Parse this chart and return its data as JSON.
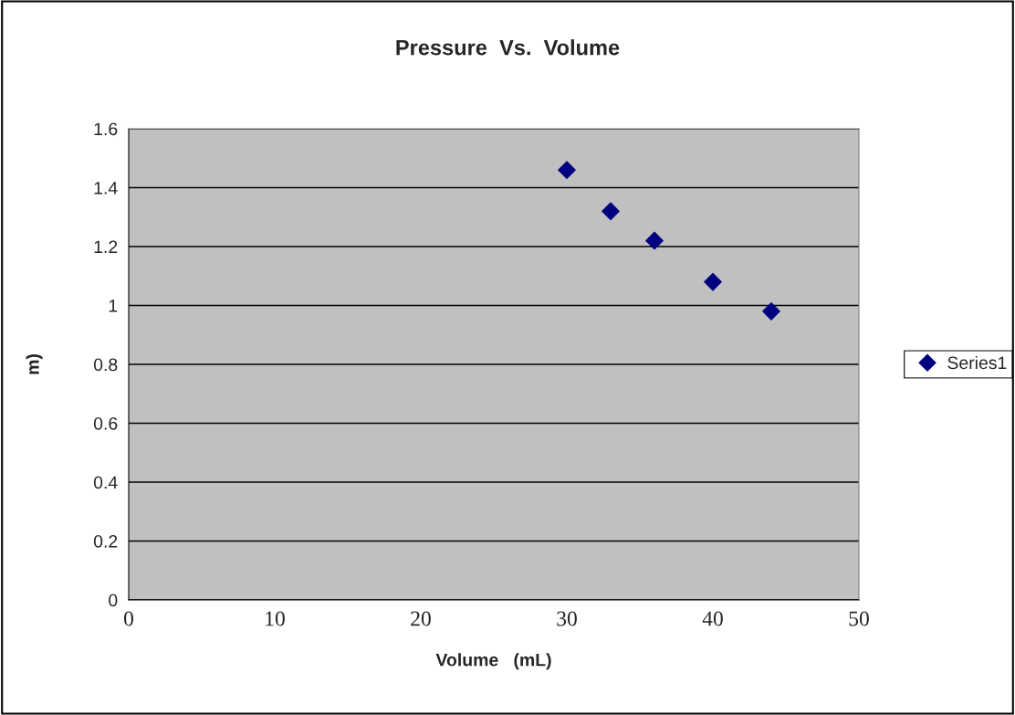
{
  "chart_data": {
    "type": "scatter",
    "title": "Pressure  Vs.  Volume",
    "xlabel": "Volume   (mL)",
    "ylabel": "m)",
    "x": [
      30,
      33,
      36,
      40,
      44
    ],
    "series": [
      {
        "name": "Series1",
        "color": "#000080",
        "values": [
          1.46,
          1.32,
          1.22,
          1.08,
          0.98
        ]
      }
    ],
    "xlim": [
      0,
      50
    ],
    "xticks": [
      0,
      10,
      20,
      30,
      40,
      50
    ],
    "ylim": [
      0,
      1.6
    ],
    "yticks": [
      0,
      0.2,
      0.4,
      0.6,
      0.8,
      1,
      1.2,
      1.4,
      1.6
    ],
    "grid": "y",
    "legend": "right",
    "marker": "diamond"
  }
}
